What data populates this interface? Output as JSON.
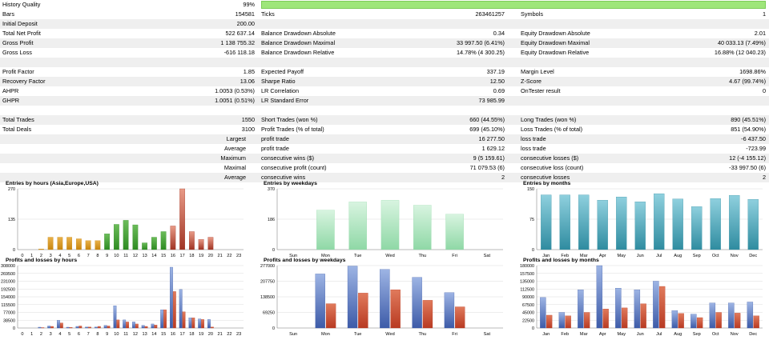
{
  "table": {
    "history_quality": {
      "label": "History Quality",
      "value": "99%"
    },
    "rows": [
      {
        "top": 12,
        "alt": false,
        "cells": [
          [
            "Bars",
            "154581"
          ],
          [
            "Ticks",
            "263461257"
          ],
          [
            "Symbols",
            "1"
          ]
        ]
      },
      {
        "top": 24,
        "alt": true,
        "cells": [
          [
            "Initial Deposit",
            "200.00"
          ],
          [
            "",
            ""
          ],
          [
            "",
            ""
          ]
        ]
      },
      {
        "top": 36,
        "alt": false,
        "cells": [
          [
            "Total Net Profit",
            "522 637.14"
          ],
          [
            "Balance Drawdown Absolute",
            "0.34"
          ],
          [
            "Equity Drawdown Absolute",
            "2.01"
          ]
        ]
      },
      {
        "top": 48,
        "alt": true,
        "cells": [
          [
            "Gross Profit",
            "1 138 755.32"
          ],
          [
            "Balance Drawdown Maximal",
            "33 997.50 (6.41%)"
          ],
          [
            "Equity Drawdown Maximal",
            "40 033.13 (7.49%)"
          ]
        ]
      },
      {
        "top": 60,
        "alt": false,
        "cells": [
          [
            "Gross Loss",
            "-616 118.18"
          ],
          [
            "Balance Drawdown Relative",
            "14.78% (4 300.25)"
          ],
          [
            "Equity Drawdown Relative",
            "16.88% (12 040.23)"
          ]
        ]
      },
      {
        "top": 72,
        "alt": true,
        "cells": [
          [
            "",
            ""
          ],
          [
            "",
            ""
          ],
          [
            "",
            ""
          ]
        ]
      },
      {
        "top": 84,
        "alt": false,
        "cells": [
          [
            "Profit Factor",
            "1.85"
          ],
          [
            "Expected Payoff",
            "337.19"
          ],
          [
            "Margin Level",
            "1698.86%"
          ]
        ]
      },
      {
        "top": 96,
        "alt": true,
        "cells": [
          [
            "Recovery Factor",
            "13.06"
          ],
          [
            "Sharpe Ratio",
            "12.50"
          ],
          [
            "Z-Score",
            "4.67 (99.74%)"
          ]
        ]
      },
      {
        "top": 108,
        "alt": false,
        "cells": [
          [
            "AHPR",
            "1.0053 (0.53%)"
          ],
          [
            "LR Correlation",
            "0.69"
          ],
          [
            "OnTester result",
            "0"
          ]
        ]
      },
      {
        "top": 120,
        "alt": true,
        "cells": [
          [
            "GHPR",
            "1.0051 (0.51%)"
          ],
          [
            "LR Standard Error",
            "73 985.99"
          ],
          [
            "",
            ""
          ]
        ]
      },
      {
        "top": 132,
        "alt": false,
        "cells": [
          [
            "",
            ""
          ],
          [
            "",
            ""
          ],
          [
            "",
            ""
          ]
        ]
      },
      {
        "top": 144,
        "alt": true,
        "cells": [
          [
            "Total Trades",
            "1550"
          ],
          [
            "Short Trades (won %)",
            "660 (44.55%)"
          ],
          [
            "Long Trades (won %)",
            "890 (45.51%)"
          ]
        ]
      },
      {
        "top": 156,
        "alt": false,
        "cells": [
          [
            "Total Deals",
            "3100"
          ],
          [
            "Profit Trades (% of total)",
            "699 (45.10%)"
          ],
          [
            "Loss Trades (% of total)",
            "851 (54.90%)"
          ]
        ]
      },
      {
        "top": 168,
        "alt": true,
        "right": true,
        "cells": [
          [
            "Largest",
            ""
          ],
          [
            "profit trade",
            "16 277.50"
          ],
          [
            "loss trade",
            "-6 437.50"
          ]
        ]
      },
      {
        "top": 180,
        "alt": false,
        "right": true,
        "cells": [
          [
            "Average",
            ""
          ],
          [
            "profit trade",
            "1 629.12"
          ],
          [
            "loss trade",
            "-723.99"
          ]
        ]
      },
      {
        "top": 192,
        "alt": true,
        "right": true,
        "cells": [
          [
            "Maximum",
            ""
          ],
          [
            "consecutive wins ($)",
            "9 (5 159.61)"
          ],
          [
            "consecutive losses ($)",
            "12 (-4 155.12)"
          ]
        ]
      },
      {
        "top": 204,
        "alt": false,
        "right": true,
        "cells": [
          [
            "Maximal",
            ""
          ],
          [
            "consecutive profit (count)",
            "71 079.53 (6)"
          ],
          [
            "consecutive loss (count)",
            "-33 997.50 (6)"
          ]
        ]
      },
      {
        "top": 216,
        "alt": true,
        "right": true,
        "cells": [
          [
            "Average",
            ""
          ],
          [
            "consecutive wins",
            "2"
          ],
          [
            "consecutive losses",
            "2"
          ]
        ]
      }
    ]
  },
  "colors": {
    "green_bar": "#9ee67a",
    "row_alt": "#efefef",
    "blue": "#3d5ba8",
    "red": "#b83a22",
    "orange": "#c8860e",
    "green": "#2e8b22",
    "darkred": "#a03424",
    "teal": "#2f8ca0",
    "lightgreen": "#8fd8a6"
  },
  "chart_data": [
    {
      "type": "bar",
      "title": "Entries by hours (Asia,Europe,USA)",
      "categories": [
        "0",
        "1",
        "2",
        "3",
        "4",
        "5",
        "6",
        "7",
        "8",
        "9",
        "10",
        "11",
        "12",
        "13",
        "14",
        "15",
        "16",
        "17",
        "18",
        "19",
        "20",
        "21",
        "22",
        "23"
      ],
      "values": [
        0,
        0,
        3,
        55,
        55,
        55,
        48,
        40,
        40,
        70,
        112,
        130,
        110,
        30,
        55,
        80,
        105,
        270,
        80,
        45,
        55,
        0,
        0,
        0
      ],
      "ylim": [
        0,
        270
      ],
      "yticks": [
        "270",
        "135",
        "0"
      ]
    },
    {
      "type": "bar",
      "title": "Entries by weekdays",
      "categories": [
        "Sun",
        "Mon",
        "Tue",
        "Wed",
        "Thu",
        "Fri",
        "Sat"
      ],
      "values": [
        0,
        240,
        290,
        300,
        270,
        215,
        0
      ],
      "ylim": [
        0,
        370
      ],
      "yticks": [
        "370",
        "186",
        "0"
      ]
    },
    {
      "type": "bar",
      "title": "Entries by months",
      "categories": [
        "Jan",
        "Feb",
        "Mar",
        "Apr",
        "May",
        "Jun",
        "Jul",
        "Aug",
        "Sep",
        "Oct",
        "Nov",
        "Dec"
      ],
      "values": [
        135,
        135,
        135,
        122,
        130,
        118,
        138,
        125,
        106,
        126,
        134,
        124
      ],
      "ylim": [
        0,
        150
      ],
      "yticks": [
        "150",
        "75",
        "0"
      ]
    },
    {
      "type": "bar",
      "title": "Profits and losses by hours",
      "categories": [
        "0",
        "1",
        "2",
        "3",
        "4",
        "5",
        "6",
        "7",
        "8",
        "9",
        "10",
        "11",
        "12",
        "13",
        "14",
        "15",
        "16",
        "17",
        "18",
        "19",
        "20",
        "21",
        "22",
        "23"
      ],
      "series": [
        {
          "values": [
            0,
            0,
            4000,
            10000,
            38000,
            4000,
            8000,
            5000,
            5000,
            13000,
            110000,
            40000,
            30000,
            13000,
            20000,
            90000,
            300000,
            190000,
            50000,
            45000,
            42000,
            0,
            0,
            0
          ]
        },
        {
          "values": [
            0,
            0,
            2000,
            8000,
            25000,
            3000,
            10000,
            5000,
            8000,
            10000,
            40000,
            30000,
            20000,
            8000,
            15000,
            90000,
            180000,
            80000,
            50000,
            42000,
            5000,
            0,
            0,
            0
          ]
        }
      ],
      "ylim": [
        0,
        308000
      ],
      "yticks": [
        "308000",
        "269500",
        "231000",
        "192500",
        "154000",
        "115500",
        "77000",
        "38500",
        "0"
      ]
    },
    {
      "type": "bar",
      "title": "Profits and losses by weekdays",
      "categories": [
        "Sun",
        "Mon",
        "Tue",
        "Wed",
        "Thu",
        "Fri",
        "Sat"
      ],
      "series": [
        {
          "values": [
            0,
            240000,
            275000,
            260000,
            225000,
            157000,
            0
          ]
        },
        {
          "values": [
            0,
            108000,
            155000,
            170000,
            123000,
            94000,
            0
          ]
        }
      ],
      "ylim": [
        0,
        277000
      ],
      "yticks": [
        "277000",
        "207750",
        "138500",
        "69250",
        "0"
      ]
    },
    {
      "type": "bar",
      "title": "Profits and losses by months",
      "categories": [
        "Jan",
        "Feb",
        "Mar",
        "Apr",
        "May",
        "Jun",
        "Jul",
        "Aug",
        "Sep",
        "Oct",
        "Nov",
        "Dec"
      ],
      "series": [
        {
          "values": [
            88000,
            45000,
            110000,
            180000,
            115000,
            110000,
            135000,
            50000,
            40000,
            72000,
            72000,
            75000
          ]
        },
        {
          "values": [
            37000,
            35000,
            45000,
            55000,
            58000,
            70000,
            120000,
            42000,
            30000,
            45000,
            43000,
            35000
          ]
        }
      ],
      "ylim": [
        0,
        180000
      ],
      "yticks": [
        "180000",
        "157500",
        "135000",
        "112500",
        "90000",
        "67500",
        "45000",
        "22500",
        "0"
      ]
    }
  ]
}
